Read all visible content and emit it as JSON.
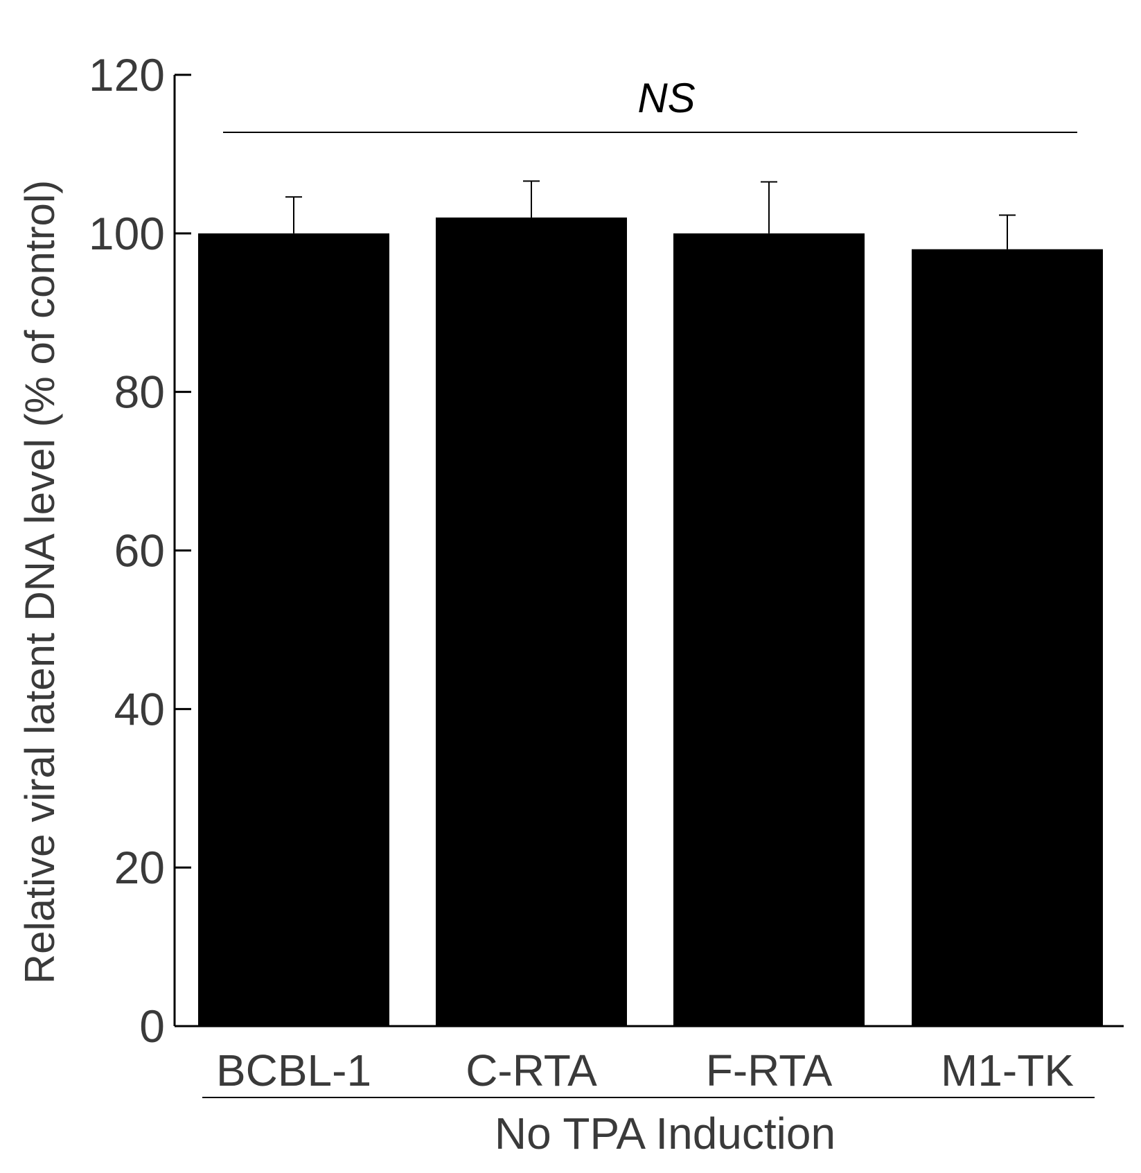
{
  "chart_data": {
    "type": "bar",
    "categories": [
      "BCBL-1",
      "C-RTA",
      "F-RTA",
      "M1-TK"
    ],
    "series": [
      {
        "values": [
          100,
          102,
          100,
          98
        ],
        "errors": [
          4.6,
          4.6,
          6.5,
          4.3
        ]
      }
    ],
    "ylabel": "Relative viral latent DNA  level (% of control)",
    "xlabel": "",
    "group_label": "No TPA Induction",
    "ylim": [
      0,
      120
    ],
    "yticks": [
      0,
      20,
      40,
      60,
      80,
      100,
      120
    ],
    "significance": {
      "label": "NS",
      "from": "BCBL-1",
      "to": "M1-TK"
    },
    "bar_color": "#000000",
    "text_color": "#3a3a3a",
    "grid": false,
    "legend": "none"
  }
}
